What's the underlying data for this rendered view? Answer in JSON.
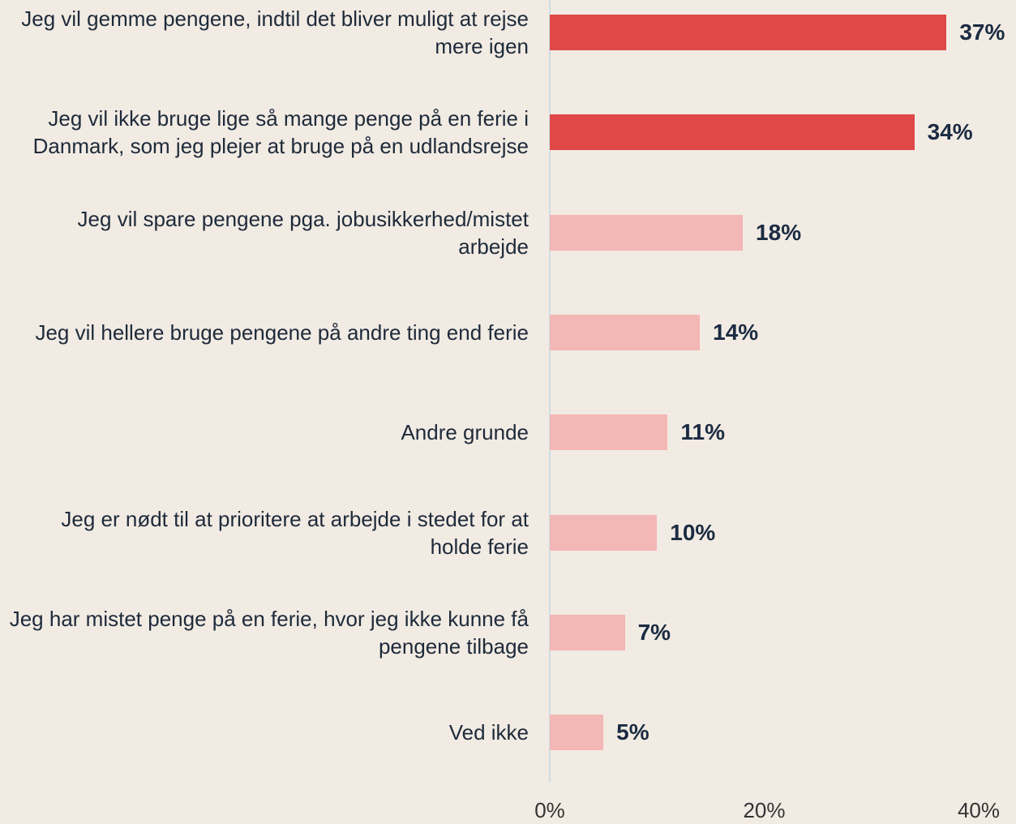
{
  "chart_data": {
    "type": "barh",
    "categories": [
      "Jeg vil gemme pengene, indtil det bliver muligt at rejse mere igen",
      "Jeg vil ikke bruge lige så mange penge på en ferie i Danmark, som jeg plejer at bruge på en udlandsrejse",
      "Jeg vil spare pengene pga. jobusikkerhed/mistet arbejde",
      "Jeg vil hellere bruge pengene på andre ting end ferie",
      "Andre grunde",
      "Jeg er nødt til at prioritere at arbejde i stedet for at holde ferie",
      "Jeg har mistet penge på en ferie, hvor jeg ikke kunne få pengene tilbage",
      "Ved ikke"
    ],
    "values": [
      37,
      34,
      18,
      14,
      11,
      10,
      7,
      5
    ],
    "value_labels": [
      "37%",
      "34%",
      "18%",
      "14%",
      "11%",
      "10%",
      "7%",
      "5%"
    ],
    "colors": [
      "#e04848",
      "#e04848",
      "#f3b7b5",
      "#f3b7b5",
      "#f3b7b5",
      "#f3b7b5",
      "#f3b7b5",
      "#f3b7b5"
    ],
    "xlim": [
      0,
      40
    ],
    "xticks": [
      {
        "value": 0,
        "label": "0%"
      },
      {
        "value": 20,
        "label": "20%"
      },
      {
        "value": 40,
        "label": "40%"
      }
    ]
  }
}
